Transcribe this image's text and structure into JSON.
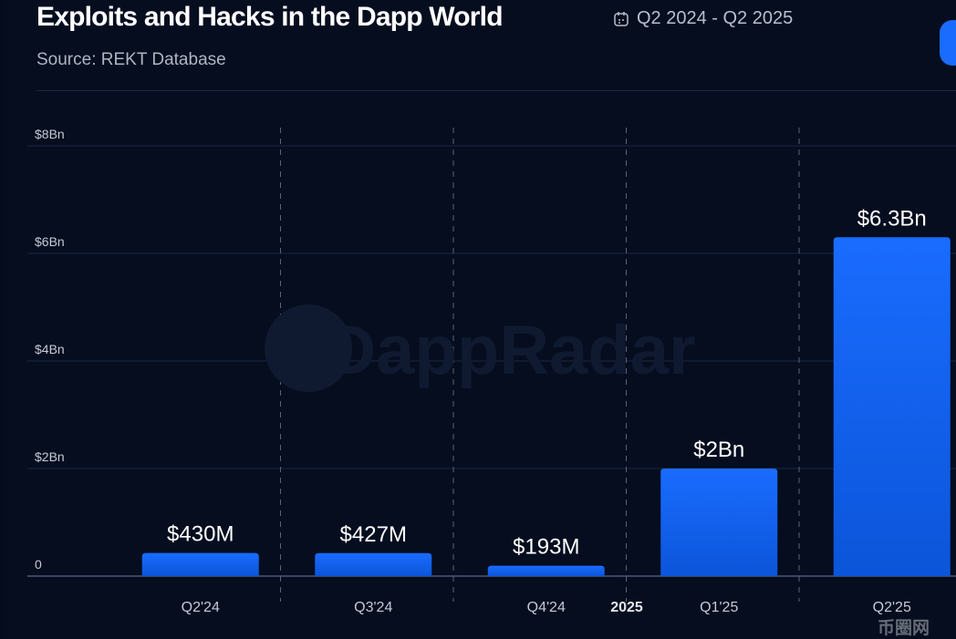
{
  "header": {
    "title": "Exploits and Hacks in the Dapp World",
    "date_range": "Q2 2024 - Q2 2025",
    "date_icon": "calendar-icon",
    "subtitle": "Source: REKT Database"
  },
  "watermarks": {
    "brand": "DappRadar",
    "corner": "币圈网"
  },
  "colors": {
    "bar": "#1a6cff",
    "bar_bottom": "#0b55d9",
    "background": "#050d1f",
    "grid": "#1c2740"
  },
  "chart_data": {
    "type": "bar",
    "title": "Exploits and Hacks in the Dapp World",
    "categories": [
      "Q2'24",
      "Q3'24",
      "Q4'24",
      "Q1'25",
      "Q2'25"
    ],
    "values": [
      0.43,
      0.427,
      0.193,
      2.0,
      6.3
    ],
    "data_labels": [
      "$430M",
      "$427M",
      "$193M",
      "$2Bn",
      "$6.3Bn"
    ],
    "y_unit": "USD billions",
    "ylim": [
      0,
      8
    ],
    "y_ticks": [
      0,
      2,
      4,
      6,
      8
    ],
    "y_tick_labels": [
      "0",
      "$2Bn",
      "$4Bn",
      "$6Bn",
      "$8Bn"
    ],
    "x_annotation": "2025",
    "grid": true,
    "xlabel": "",
    "ylabel": ""
  }
}
